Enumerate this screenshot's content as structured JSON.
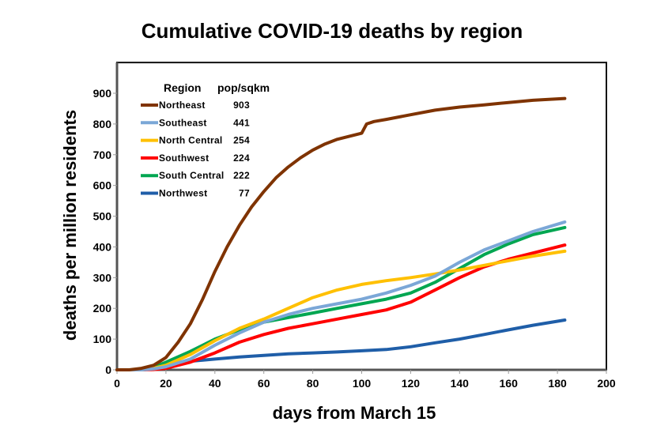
{
  "chart_data": {
    "type": "line",
    "title": "Cumulative COVID-19 deaths by region",
    "xlabel": "days from March 15",
    "ylabel": "deaths per million residents",
    "xlim": [
      0,
      200
    ],
    "ylim": [
      0,
      1000
    ],
    "xticks": [
      0,
      20,
      40,
      60,
      80,
      100,
      120,
      140,
      160,
      180,
      200
    ],
    "yticks": [
      0,
      100,
      200,
      300,
      400,
      500,
      600,
      700,
      800,
      900
    ],
    "grid": false,
    "legend": {
      "placement": "top-left",
      "header_region": "Region",
      "header_pop": "pop/sqkm"
    },
    "series": [
      {
        "name": "Northeast",
        "pop_sqkm": "903",
        "color": "#7f3300",
        "x": [
          0,
          5,
          10,
          15,
          20,
          25,
          30,
          35,
          40,
          45,
          50,
          55,
          60,
          65,
          70,
          75,
          80,
          85,
          90,
          95,
          100,
          101,
          102,
          105,
          110,
          120,
          130,
          140,
          150,
          160,
          170,
          183
        ],
        "y": [
          0,
          0,
          5,
          15,
          40,
          90,
          150,
          230,
          320,
          400,
          470,
          530,
          580,
          625,
          660,
          690,
          715,
          735,
          750,
          760,
          770,
          785,
          800,
          808,
          815,
          830,
          845,
          855,
          862,
          870,
          877,
          883
        ]
      },
      {
        "name": "Southeast",
        "pop_sqkm": "441",
        "color": "#7ba7d7",
        "x": [
          0,
          10,
          15,
          20,
          30,
          40,
          50,
          60,
          70,
          80,
          90,
          100,
          110,
          120,
          130,
          140,
          150,
          160,
          170,
          183
        ],
        "y": [
          0,
          0,
          3,
          10,
          35,
          80,
          120,
          155,
          180,
          200,
          215,
          230,
          250,
          275,
          305,
          350,
          390,
          420,
          450,
          481
        ]
      },
      {
        "name": "North Central",
        "pop_sqkm": "254",
        "color": "#ffc000",
        "x": [
          0,
          10,
          15,
          20,
          30,
          40,
          50,
          60,
          70,
          80,
          90,
          100,
          110,
          120,
          130,
          140,
          150,
          160,
          170,
          183
        ],
        "y": [
          0,
          0,
          5,
          15,
          50,
          95,
          135,
          165,
          200,
          235,
          260,
          278,
          290,
          300,
          312,
          325,
          340,
          355,
          370,
          386
        ]
      },
      {
        "name": "Southwest",
        "pop_sqkm": "224",
        "color": "#ff0000",
        "x": [
          0,
          10,
          15,
          20,
          30,
          40,
          50,
          60,
          70,
          80,
          90,
          100,
          110,
          120,
          130,
          140,
          150,
          160,
          170,
          183
        ],
        "y": [
          0,
          0,
          1,
          5,
          25,
          55,
          90,
          115,
          135,
          150,
          165,
          180,
          195,
          220,
          260,
          300,
          335,
          360,
          380,
          406
        ]
      },
      {
        "name": "South Central",
        "pop_sqkm": "222",
        "color": "#00a651",
        "x": [
          0,
          10,
          15,
          20,
          30,
          40,
          50,
          60,
          70,
          80,
          90,
          100,
          110,
          120,
          130,
          140,
          150,
          160,
          170,
          183
        ],
        "y": [
          0,
          0,
          8,
          25,
          60,
          100,
          130,
          155,
          170,
          185,
          200,
          215,
          230,
          250,
          285,
          330,
          375,
          410,
          440,
          463
        ]
      },
      {
        "name": "Northwest",
        "pop_sqkm": "77",
        "color": "#1f5ea8",
        "x": [
          0,
          10,
          15,
          20,
          30,
          40,
          50,
          60,
          70,
          80,
          90,
          100,
          110,
          120,
          130,
          140,
          150,
          160,
          170,
          183
        ],
        "y": [
          0,
          0,
          3,
          15,
          28,
          35,
          42,
          47,
          52,
          55,
          58,
          62,
          66,
          75,
          88,
          100,
          115,
          130,
          145,
          162
        ]
      }
    ]
  }
}
